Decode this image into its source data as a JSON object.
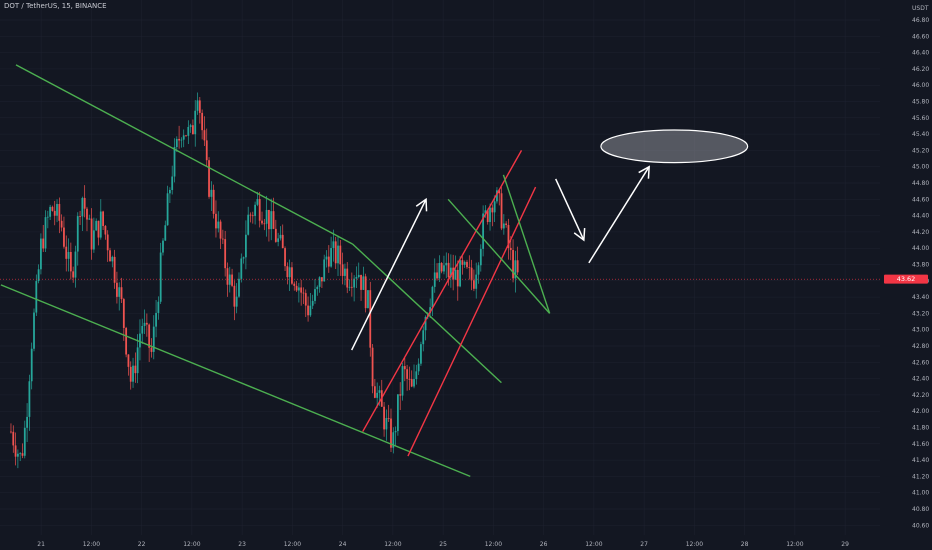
{
  "header": {
    "title": "DOT / TetherUS, 15, BINANCE"
  },
  "colors": {
    "background": "#131722",
    "up": "#26a69a",
    "down": "#ef5350",
    "trend_green": "#4caf50",
    "trend_red": "#f23645",
    "arrow": "#ffffff",
    "price_tag": "#f23645"
  },
  "chart_data": {
    "type": "candlestick",
    "symbol": "DOT / TetherUS",
    "interval": "15",
    "exchange": "BINANCE",
    "currency_label": "USDT",
    "current_price": "43.62",
    "y_ticks": [
      "46.80",
      "46.60",
      "46.40",
      "46.20",
      "46.00",
      "45.80",
      "45.60",
      "45.40",
      "45.20",
      "45.00",
      "44.80",
      "44.60",
      "44.40",
      "44.20",
      "44.00",
      "43.80",
      "43.60",
      "43.40",
      "43.20",
      "43.00",
      "42.80",
      "42.60",
      "42.40",
      "42.20",
      "42.00",
      "41.80",
      "41.60",
      "41.40",
      "41.20",
      "41.00",
      "40.80",
      "40.60"
    ],
    "x_ticks": [
      "12:00",
      "21",
      "12:00",
      "22",
      "12:00",
      "23",
      "12:00",
      "24",
      "12:00",
      "25",
      "12:00",
      "26",
      "12:00",
      "27",
      "12:00",
      "28",
      "12:00",
      "29"
    ],
    "ylim": [
      40.55,
      46.95
    ],
    "price_path": [
      [
        20.7,
        41.75
      ],
      [
        20.8,
        41.4
      ],
      [
        20.85,
        41.9
      ],
      [
        20.9,
        42.8
      ],
      [
        20.95,
        43.4
      ],
      [
        21.0,
        44.05
      ],
      [
        21.1,
        44.5
      ],
      [
        21.2,
        44.3
      ],
      [
        21.3,
        43.6
      ],
      [
        21.4,
        44.7
      ],
      [
        21.5,
        44.1
      ],
      [
        21.6,
        44.35
      ],
      [
        21.7,
        43.9
      ],
      [
        21.8,
        43.3
      ],
      [
        21.9,
        42.3
      ],
      [
        22.0,
        43.1
      ],
      [
        22.1,
        42.7
      ],
      [
        22.2,
        43.9
      ],
      [
        22.3,
        44.95
      ],
      [
        22.4,
        45.5
      ],
      [
        22.5,
        45.35
      ],
      [
        22.55,
        46.05
      ],
      [
        22.65,
        44.9
      ],
      [
        22.75,
        44.3
      ],
      [
        22.85,
        43.7
      ],
      [
        22.95,
        43.3
      ],
      [
        23.05,
        44.35
      ],
      [
        23.15,
        44.55
      ],
      [
        23.25,
        44.4
      ],
      [
        23.35,
        44.1
      ],
      [
        23.45,
        43.8
      ],
      [
        23.55,
        43.6
      ],
      [
        23.65,
        43.25
      ],
      [
        23.75,
        43.45
      ],
      [
        23.85,
        43.95
      ],
      [
        23.95,
        43.9
      ],
      [
        24.05,
        43.65
      ],
      [
        24.15,
        43.75
      ],
      [
        24.25,
        43.35
      ],
      [
        24.3,
        42.4
      ],
      [
        24.4,
        41.95
      ],
      [
        24.5,
        41.6
      ],
      [
        24.6,
        42.5
      ],
      [
        24.7,
        42.2
      ],
      [
        24.8,
        43.1
      ],
      [
        24.9,
        43.55
      ],
      [
        25.0,
        43.75
      ],
      [
        25.1,
        43.65
      ],
      [
        25.2,
        43.7
      ],
      [
        25.3,
        43.6
      ],
      [
        25.4,
        44.3
      ],
      [
        25.5,
        44.65
      ],
      [
        25.55,
        44.55
      ],
      [
        25.6,
        44.3
      ],
      [
        25.65,
        44.0
      ],
      [
        25.7,
        43.75
      ],
      [
        25.75,
        43.62
      ]
    ],
    "trendlines": [
      {
        "color": "green",
        "points": [
          [
            20.75,
            46.25
          ],
          [
            24.1,
            44.05
          ]
        ]
      },
      {
        "color": "green",
        "points": [
          [
            24.1,
            44.05
          ],
          [
            25.58,
            42.35
          ]
        ]
      },
      {
        "color": "green",
        "points": [
          [
            20.6,
            43.55
          ],
          [
            25.27,
            41.2
          ]
        ]
      },
      {
        "color": "red",
        "points": [
          [
            24.2,
            41.75
          ],
          [
            25.78,
            45.2
          ]
        ]
      },
      {
        "color": "red",
        "points": [
          [
            24.65,
            41.45
          ],
          [
            25.92,
            44.75
          ]
        ]
      },
      {
        "color": "green",
        "points": [
          [
            25.6,
            44.9
          ],
          [
            26.06,
            43.2
          ]
        ]
      },
      {
        "color": "green",
        "points": [
          [
            25.05,
            44.6
          ],
          [
            26.06,
            43.2
          ]
        ]
      }
    ],
    "arrows": [
      {
        "points": [
          [
            24.09,
            42.75
          ],
          [
            24.83,
            44.6
          ]
        ]
      },
      {
        "points": [
          [
            26.12,
            44.85
          ],
          [
            26.4,
            44.1
          ]
        ]
      },
      {
        "points": [
          [
            26.45,
            43.82
          ],
          [
            27.05,
            45.0
          ]
        ]
      }
    ],
    "target_ellipse": {
      "center": [
        27.3,
        45.25
      ],
      "rx_days": 0.73,
      "ry_price": 0.2
    }
  }
}
